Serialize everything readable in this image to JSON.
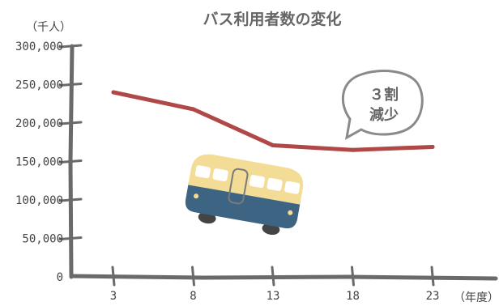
{
  "chart_data": {
    "type": "line",
    "title": "バス利用者数の変化",
    "y_unit": "（千人）",
    "x_unit": "（年度）",
    "x": [
      3,
      8,
      13,
      18,
      23
    ],
    "x_tick_labels": [
      "3",
      "8",
      "13",
      "18",
      "23"
    ],
    "y_ticks": [
      0,
      50000,
      100000,
      150000,
      200000,
      250000,
      300000
    ],
    "y_tick_labels": [
      "0",
      "50,000",
      "100,000",
      "150,000",
      "200,000",
      "250,000",
      "300,000"
    ],
    "ylim": [
      0,
      300000
    ],
    "series": [
      {
        "values": [
          240000,
          218000,
          171000,
          165000,
          169000
        ],
        "color": "#b04848"
      }
    ],
    "annotation": {
      "line1": "３割",
      "line2": "減少"
    },
    "grid": false,
    "legend": "none"
  },
  "colors": {
    "axis": "#6a6a6a",
    "bus_body": "#f3dc96",
    "bus_bottom": "#3d6583",
    "bubble_stroke": "#8a8a8a"
  },
  "illustration": {
    "icon": "bus-icon"
  }
}
